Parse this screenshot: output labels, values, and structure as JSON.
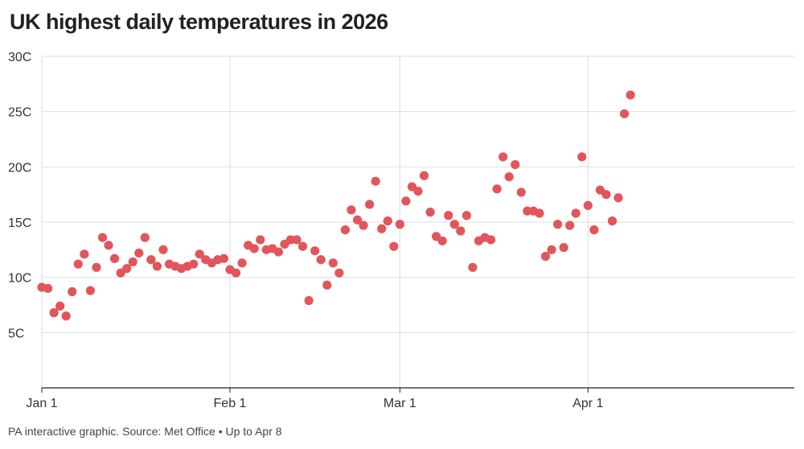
{
  "title": "UK highest daily temperatures in 2026",
  "footer": "PA interactive graphic. Source: Met Office • Up to Apr 8",
  "colors": {
    "point": "#e0565b",
    "grid": "#dedede",
    "axis": "#222222",
    "text": "#333333"
  },
  "chart_data": {
    "type": "scatter",
    "title": "UK highest daily temperatures in 2026",
    "xlabel": "",
    "ylabel": "",
    "x_unit": "date",
    "x_range": [
      "2026-01-01",
      "2026-05-05"
    ],
    "ylim": [
      0,
      30
    ],
    "y_ticks": [
      {
        "value": 5,
        "label": "5C"
      },
      {
        "value": 10,
        "label": "10C"
      },
      {
        "value": 15,
        "label": "15C"
      },
      {
        "value": 20,
        "label": "20C"
      },
      {
        "value": 25,
        "label": "25C"
      },
      {
        "value": 30,
        "label": "30C"
      }
    ],
    "x_ticks": [
      {
        "date": "2026-01-01",
        "label": "Jan 1"
      },
      {
        "date": "2026-02-01",
        "label": "Feb 1"
      },
      {
        "date": "2026-03-01",
        "label": "Mar 1"
      },
      {
        "date": "2026-04-01",
        "label": "Apr 1"
      }
    ],
    "grid": true,
    "series": [
      {
        "values": [
          {
            "x": "2026-01-01",
            "y": 9.1
          },
          {
            "x": "2026-01-02",
            "y": 9.0
          },
          {
            "x": "2026-01-03",
            "y": 6.8
          },
          {
            "x": "2026-01-04",
            "y": 7.4
          },
          {
            "x": "2026-01-05",
            "y": 6.5
          },
          {
            "x": "2026-01-06",
            "y": 8.7
          },
          {
            "x": "2026-01-07",
            "y": 11.2
          },
          {
            "x": "2026-01-08",
            "y": 12.1
          },
          {
            "x": "2026-01-09",
            "y": 8.8
          },
          {
            "x": "2026-01-10",
            "y": 10.9
          },
          {
            "x": "2026-01-11",
            "y": 13.6
          },
          {
            "x": "2026-01-12",
            "y": 12.9
          },
          {
            "x": "2026-01-13",
            "y": 11.7
          },
          {
            "x": "2026-01-14",
            "y": 10.4
          },
          {
            "x": "2026-01-15",
            "y": 10.8
          },
          {
            "x": "2026-01-16",
            "y": 11.4
          },
          {
            "x": "2026-01-17",
            "y": 12.2
          },
          {
            "x": "2026-01-18",
            "y": 13.6
          },
          {
            "x": "2026-01-19",
            "y": 11.6
          },
          {
            "x": "2026-01-20",
            "y": 11.0
          },
          {
            "x": "2026-01-21",
            "y": 12.5
          },
          {
            "x": "2026-01-22",
            "y": 11.2
          },
          {
            "x": "2026-01-23",
            "y": 11.0
          },
          {
            "x": "2026-01-24",
            "y": 10.8
          },
          {
            "x": "2026-01-25",
            "y": 11.0
          },
          {
            "x": "2026-01-26",
            "y": 11.2
          },
          {
            "x": "2026-01-27",
            "y": 12.1
          },
          {
            "x": "2026-01-28",
            "y": 11.6
          },
          {
            "x": "2026-01-29",
            "y": 11.3
          },
          {
            "x": "2026-01-30",
            "y": 11.6
          },
          {
            "x": "2026-01-31",
            "y": 11.7
          },
          {
            "x": "2026-02-01",
            "y": 10.7
          },
          {
            "x": "2026-02-02",
            "y": 10.4
          },
          {
            "x": "2026-02-03",
            "y": 11.3
          },
          {
            "x": "2026-02-04",
            "y": 12.9
          },
          {
            "x": "2026-02-05",
            "y": 12.6
          },
          {
            "x": "2026-02-06",
            "y": 13.4
          },
          {
            "x": "2026-02-07",
            "y": 12.5
          },
          {
            "x": "2026-02-08",
            "y": 12.6
          },
          {
            "x": "2026-02-09",
            "y": 12.3
          },
          {
            "x": "2026-02-10",
            "y": 13.0
          },
          {
            "x": "2026-02-11",
            "y": 13.4
          },
          {
            "x": "2026-02-12",
            "y": 13.4
          },
          {
            "x": "2026-02-13",
            "y": 12.8
          },
          {
            "x": "2026-02-14",
            "y": 7.9
          },
          {
            "x": "2026-02-15",
            "y": 12.4
          },
          {
            "x": "2026-02-16",
            "y": 11.6
          },
          {
            "x": "2026-02-17",
            "y": 9.3
          },
          {
            "x": "2026-02-18",
            "y": 11.3
          },
          {
            "x": "2026-02-19",
            "y": 10.4
          },
          {
            "x": "2026-02-20",
            "y": 14.3
          },
          {
            "x": "2026-02-21",
            "y": 16.1
          },
          {
            "x": "2026-02-22",
            "y": 15.2
          },
          {
            "x": "2026-02-23",
            "y": 14.7
          },
          {
            "x": "2026-02-24",
            "y": 16.6
          },
          {
            "x": "2026-02-25",
            "y": 18.7
          },
          {
            "x": "2026-02-26",
            "y": 14.4
          },
          {
            "x": "2026-02-27",
            "y": 15.1
          },
          {
            "x": "2026-02-28",
            "y": 12.8
          },
          {
            "x": "2026-03-01",
            "y": 14.8
          },
          {
            "x": "2026-03-02",
            "y": 16.9
          },
          {
            "x": "2026-03-03",
            "y": 18.2
          },
          {
            "x": "2026-03-04",
            "y": 17.8
          },
          {
            "x": "2026-03-05",
            "y": 19.2
          },
          {
            "x": "2026-03-06",
            "y": 15.9
          },
          {
            "x": "2026-03-07",
            "y": 13.7
          },
          {
            "x": "2026-03-08",
            "y": 13.3
          },
          {
            "x": "2026-03-09",
            "y": 15.6
          },
          {
            "x": "2026-03-10",
            "y": 14.8
          },
          {
            "x": "2026-03-11",
            "y": 14.2
          },
          {
            "x": "2026-03-12",
            "y": 15.6
          },
          {
            "x": "2026-03-13",
            "y": 10.9
          },
          {
            "x": "2026-03-14",
            "y": 13.3
          },
          {
            "x": "2026-03-15",
            "y": 13.6
          },
          {
            "x": "2026-03-16",
            "y": 13.4
          },
          {
            "x": "2026-03-17",
            "y": 18.0
          },
          {
            "x": "2026-03-18",
            "y": 20.9
          },
          {
            "x": "2026-03-19",
            "y": 19.1
          },
          {
            "x": "2026-03-20",
            "y": 20.2
          },
          {
            "x": "2026-03-21",
            "y": 17.7
          },
          {
            "x": "2026-03-22",
            "y": 16.0
          },
          {
            "x": "2026-03-23",
            "y": 16.0
          },
          {
            "x": "2026-03-24",
            "y": 15.8
          },
          {
            "x": "2026-03-25",
            "y": 11.9
          },
          {
            "x": "2026-03-26",
            "y": 12.5
          },
          {
            "x": "2026-03-27",
            "y": 14.8
          },
          {
            "x": "2026-03-28",
            "y": 12.7
          },
          {
            "x": "2026-03-29",
            "y": 14.7
          },
          {
            "x": "2026-03-30",
            "y": 15.8
          },
          {
            "x": "2026-03-31",
            "y": 20.9
          },
          {
            "x": "2026-04-01",
            "y": 16.5
          },
          {
            "x": "2026-04-02",
            "y": 14.3
          },
          {
            "x": "2026-04-03",
            "y": 17.9
          },
          {
            "x": "2026-04-04",
            "y": 17.5
          },
          {
            "x": "2026-04-05",
            "y": 15.1
          },
          {
            "x": "2026-04-06",
            "y": 17.2
          },
          {
            "x": "2026-04-07",
            "y": 24.8
          },
          {
            "x": "2026-04-08",
            "y": 26.5
          }
        ]
      }
    ]
  }
}
